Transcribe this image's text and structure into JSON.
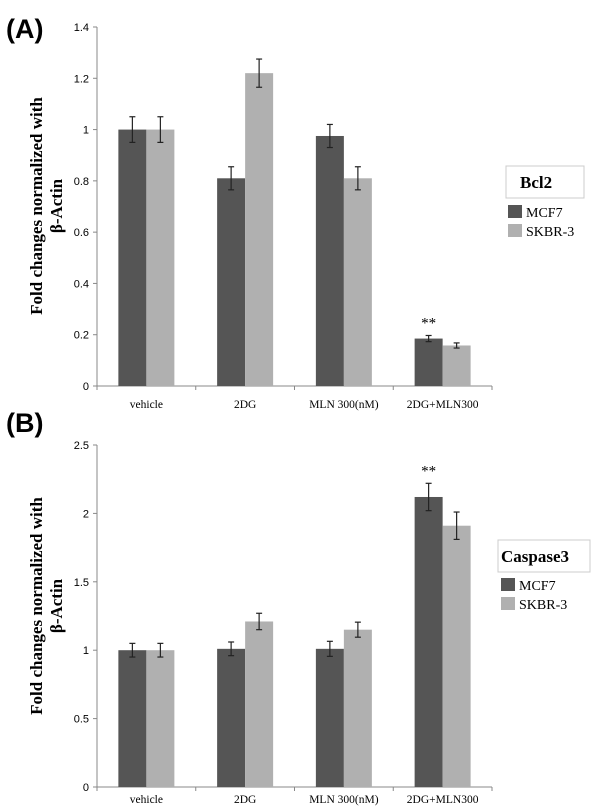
{
  "colors": {
    "series1": "#555555",
    "series2": "#b0b0b0",
    "axis": "#888888"
  },
  "chart_data": [
    {
      "panel": "(A)",
      "type": "bar",
      "ylabel": [
        "Fold changes normalized with",
        "β-Actin"
      ],
      "categories": [
        "vehicle",
        "2DG",
        "MLN 300(nM)",
        "2DG+MLN300"
      ],
      "ylim": [
        0,
        1.4
      ],
      "yticks": [
        "0",
        "0.2",
        "0.4",
        "0.6",
        "0.8",
        "1",
        "1.2",
        "1.4"
      ],
      "series": [
        {
          "name": "MCF7",
          "values": [
            1.0,
            0.81,
            0.975,
            0.185
          ],
          "errors": [
            0.05,
            0.045,
            0.045,
            0.012
          ]
        },
        {
          "name": "SKBR-3",
          "values": [
            1.0,
            1.22,
            0.81,
            0.158
          ],
          "errors": [
            0.05,
            0.055,
            0.045,
            0.01
          ]
        }
      ],
      "legend_title": "Bcl2",
      "legend_position": "right",
      "annotations": [
        {
          "category": "2DG+MLN300",
          "text": "**"
        }
      ]
    },
    {
      "panel": "(B)",
      "type": "bar",
      "ylabel": [
        "Fold changes normalized with",
        "β-Actin"
      ],
      "categories": [
        "vehicle",
        "2DG",
        "MLN 300(nM)",
        "2DG+MLN300"
      ],
      "ylim": [
        0,
        2.5
      ],
      "yticks": [
        "0",
        "0.5",
        "1",
        "1.5",
        "2",
        "2.5"
      ],
      "series": [
        {
          "name": "MCF7",
          "values": [
            1.0,
            1.01,
            1.01,
            2.12
          ],
          "errors": [
            0.05,
            0.05,
            0.055,
            0.1
          ]
        },
        {
          "name": "SKBR-3",
          "values": [
            1.0,
            1.21,
            1.15,
            1.91
          ],
          "errors": [
            0.05,
            0.06,
            0.055,
            0.1
          ]
        }
      ],
      "legend_title": "Caspase3",
      "legend_position": "right",
      "annotations": [
        {
          "category": "2DG+MLN300",
          "text": "**"
        }
      ]
    }
  ]
}
